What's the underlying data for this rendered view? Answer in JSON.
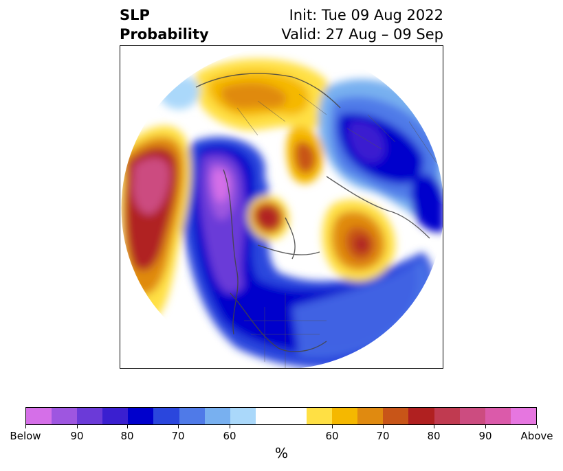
{
  "header": {
    "title_line1": "SLP",
    "title_line2": "Probability",
    "init": "Init: Tue 09 Aug 2022",
    "valid": "Valid: 27 Aug – 09 Sep"
  },
  "colorbar": {
    "colors": [
      "#d56fe8",
      "#9e56e0",
      "#6b3ad8",
      "#3a1fd0",
      "#0000cc",
      "#2a46dd",
      "#4f7ae8",
      "#78b0f0",
      "#aad8fa",
      "#ffffff",
      "#ffffff",
      "#ffe044",
      "#f5b800",
      "#e08a10",
      "#c85518",
      "#b02020",
      "#c03a50",
      "#cc4c80",
      "#db5aaa",
      "#e676e0"
    ],
    "tick_labels": [
      "Below",
      "90",
      "80",
      "70",
      "60",
      "60",
      "70",
      "80",
      "90",
      "Above"
    ],
    "unit": "%"
  },
  "map": {
    "projection": "north-polar-stereographic",
    "region": "North America / North Pacific / Arctic",
    "below_color": "#6b3ad8",
    "above_color": "#b02020"
  }
}
